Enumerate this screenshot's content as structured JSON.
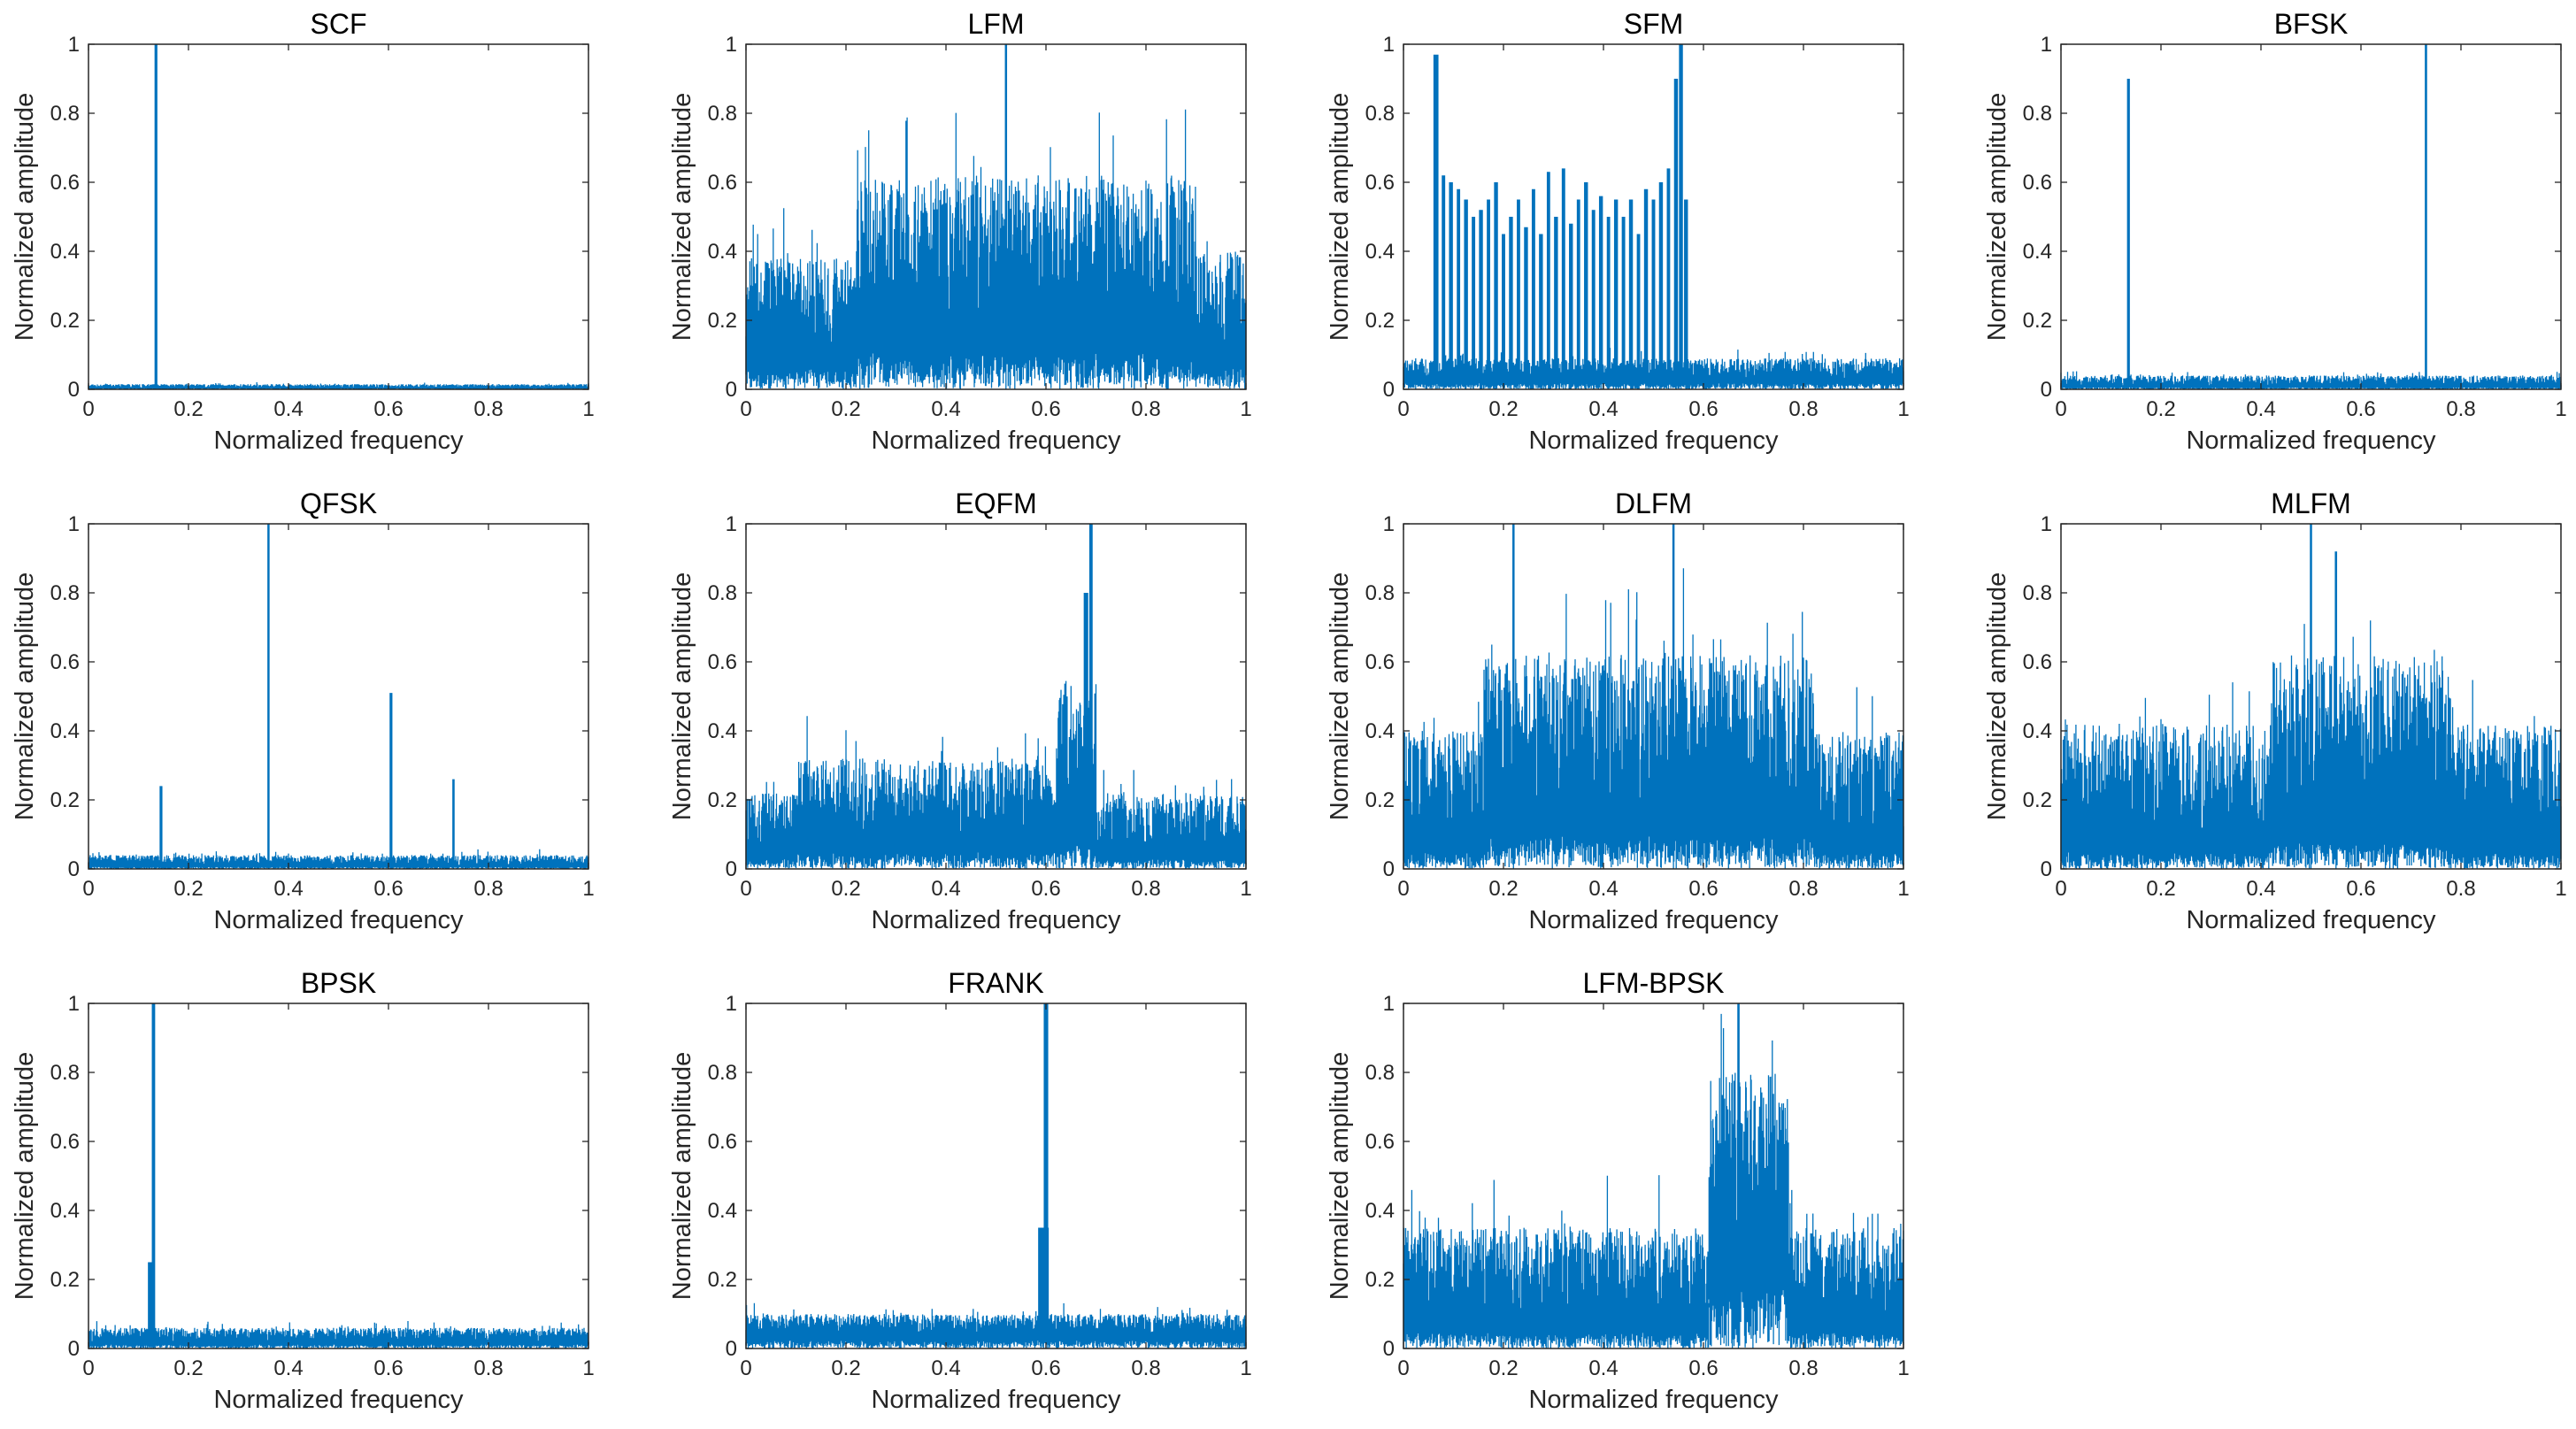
{
  "colors": {
    "series": "#0072BD",
    "axis": "#262626",
    "background": "#ffffff"
  },
  "chart_data": [
    {
      "type": "line",
      "title": "SCF",
      "xlabel": "Normalized frequency",
      "ylabel": "Normalized amplitude",
      "xlim": [
        0,
        1
      ],
      "ylim": [
        0,
        1
      ],
      "xticks": [
        "0",
        "0.2",
        "0.4",
        "0.6",
        "0.8",
        "1"
      ],
      "yticks": [
        "0",
        "0.2",
        "0.4",
        "0.6",
        "0.8",
        "1"
      ],
      "spectrum": {
        "bands": [
          [
            0,
            1,
            0.005,
            0.015
          ]
        ],
        "peaks": [
          {
            "x": 0.135,
            "y": 1.0,
            "width": 0.002
          }
        ]
      }
    },
    {
      "type": "line",
      "title": "LFM",
      "xlabel": "Normalized frequency",
      "ylabel": "Normalized amplitude",
      "xlim": [
        0,
        1
      ],
      "ylim": [
        0,
        1
      ],
      "xticks": [
        "0",
        "0.2",
        "0.4",
        "0.6",
        "0.8",
        "1"
      ],
      "yticks": [
        "0",
        "0.2",
        "0.4",
        "0.6",
        "0.8",
        "1"
      ],
      "spectrum": {
        "bands": [
          [
            0,
            0.22,
            0.1,
            0.38
          ],
          [
            0.22,
            0.9,
            0.18,
            0.62
          ],
          [
            0.9,
            1,
            0.1,
            0.4
          ]
        ],
        "peaks": [
          {
            "x": 0.52,
            "y": 1.0,
            "width": 0.002
          }
        ]
      }
    },
    {
      "type": "line",
      "title": "SFM",
      "xlabel": "Normalized frequency",
      "ylabel": "Normalized amplitude",
      "xlim": [
        0,
        1
      ],
      "ylim": [
        0,
        1
      ],
      "xticks": [
        "0",
        "0.2",
        "0.4",
        "0.6",
        "0.8",
        "1"
      ],
      "yticks": [
        "0",
        "0.2",
        "0.4",
        "0.6",
        "0.8",
        "1"
      ],
      "spectrum": {
        "bands": [
          [
            0,
            1,
            0.03,
            0.09
          ]
        ],
        "peaks": [
          {
            "x": 0.065,
            "y": 0.97,
            "width": 0.004
          },
          {
            "x": 0.08,
            "y": 0.62,
            "width": 0.003
          },
          {
            "x": 0.095,
            "y": 0.6,
            "width": 0.003
          },
          {
            "x": 0.11,
            "y": 0.58,
            "width": 0.003
          },
          {
            "x": 0.125,
            "y": 0.55,
            "width": 0.003
          },
          {
            "x": 0.14,
            "y": 0.5,
            "width": 0.003
          },
          {
            "x": 0.155,
            "y": 0.52,
            "width": 0.003
          },
          {
            "x": 0.17,
            "y": 0.55,
            "width": 0.003
          },
          {
            "x": 0.185,
            "y": 0.6,
            "width": 0.003
          },
          {
            "x": 0.2,
            "y": 0.45,
            "width": 0.003
          },
          {
            "x": 0.215,
            "y": 0.5,
            "width": 0.003
          },
          {
            "x": 0.23,
            "y": 0.55,
            "width": 0.003
          },
          {
            "x": 0.245,
            "y": 0.47,
            "width": 0.003
          },
          {
            "x": 0.26,
            "y": 0.58,
            "width": 0.003
          },
          {
            "x": 0.275,
            "y": 0.45,
            "width": 0.003
          },
          {
            "x": 0.29,
            "y": 0.63,
            "width": 0.003
          },
          {
            "x": 0.305,
            "y": 0.5,
            "width": 0.003
          },
          {
            "x": 0.32,
            "y": 0.64,
            "width": 0.003
          },
          {
            "x": 0.335,
            "y": 0.48,
            "width": 0.003
          },
          {
            "x": 0.35,
            "y": 0.55,
            "width": 0.003
          },
          {
            "x": 0.365,
            "y": 0.6,
            "width": 0.003
          },
          {
            "x": 0.38,
            "y": 0.52,
            "width": 0.003
          },
          {
            "x": 0.395,
            "y": 0.56,
            "width": 0.003
          },
          {
            "x": 0.41,
            "y": 0.5,
            "width": 0.003
          },
          {
            "x": 0.425,
            "y": 0.55,
            "width": 0.003
          },
          {
            "x": 0.44,
            "y": 0.5,
            "width": 0.003
          },
          {
            "x": 0.455,
            "y": 0.55,
            "width": 0.003
          },
          {
            "x": 0.47,
            "y": 0.45,
            "width": 0.003
          },
          {
            "x": 0.485,
            "y": 0.58,
            "width": 0.003
          },
          {
            "x": 0.5,
            "y": 0.55,
            "width": 0.003
          },
          {
            "x": 0.515,
            "y": 0.6,
            "width": 0.003
          },
          {
            "x": 0.53,
            "y": 0.64,
            "width": 0.003
          },
          {
            "x": 0.545,
            "y": 0.9,
            "width": 0.003
          },
          {
            "x": 0.555,
            "y": 1.0,
            "width": 0.003
          },
          {
            "x": 0.565,
            "y": 0.55,
            "width": 0.003
          }
        ]
      }
    },
    {
      "type": "line",
      "title": "BFSK",
      "xlabel": "Normalized frequency",
      "ylabel": "Normalized amplitude",
      "xlim": [
        0,
        1
      ],
      "ylim": [
        0,
        1
      ],
      "xticks": [
        "0",
        "0.2",
        "0.4",
        "0.6",
        "0.8",
        "1"
      ],
      "yticks": [
        "0",
        "0.2",
        "0.4",
        "0.6",
        "0.8",
        "1"
      ],
      "spectrum": {
        "bands": [
          [
            0,
            1,
            0.01,
            0.04
          ]
        ],
        "peaks": [
          {
            "x": 0.135,
            "y": 0.9,
            "width": 0.002
          },
          {
            "x": 0.73,
            "y": 1.0,
            "width": 0.002
          }
        ]
      }
    },
    {
      "type": "line",
      "title": "QFSK",
      "xlabel": "Normalized frequency",
      "ylabel": "Normalized amplitude",
      "xlim": [
        0,
        1
      ],
      "ylim": [
        0,
        1
      ],
      "xticks": [
        "0",
        "0.2",
        "0.4",
        "0.6",
        "0.8",
        "1"
      ],
      "yticks": [
        "0",
        "0.2",
        "0.4",
        "0.6",
        "0.8",
        "1"
      ],
      "spectrum": {
        "bands": [
          [
            0,
            1,
            0.01,
            0.04
          ]
        ],
        "peaks": [
          {
            "x": 0.145,
            "y": 0.24,
            "width": 0.002
          },
          {
            "x": 0.36,
            "y": 1.0,
            "width": 0.002
          },
          {
            "x": 0.605,
            "y": 0.51,
            "width": 0.002
          },
          {
            "x": 0.73,
            "y": 0.26,
            "width": 0.002
          }
        ]
      }
    },
    {
      "type": "line",
      "title": "EQFM",
      "xlabel": "Normalized frequency",
      "ylabel": "Normalized amplitude",
      "xlim": [
        0,
        1
      ],
      "ylim": [
        0,
        1
      ],
      "xticks": [
        "0",
        "0.2",
        "0.4",
        "0.6",
        "0.8",
        "1"
      ],
      "yticks": [
        "0",
        "0.2",
        "0.4",
        "0.6",
        "0.8",
        "1"
      ],
      "spectrum": {
        "bands": [
          [
            0,
            0.1,
            0.05,
            0.22
          ],
          [
            0.1,
            0.62,
            0.08,
            0.32
          ],
          [
            0.62,
            0.7,
            0.15,
            0.55
          ],
          [
            0.7,
            1,
            0.05,
            0.22
          ]
        ],
        "peaks": [
          {
            "x": 0.69,
            "y": 1.0,
            "width": 0.003
          },
          {
            "x": 0.68,
            "y": 0.8,
            "width": 0.004
          }
        ]
      }
    },
    {
      "type": "line",
      "title": "DLFM",
      "xlabel": "Normalized frequency",
      "ylabel": "Normalized amplitude",
      "xlim": [
        0,
        1
      ],
      "ylim": [
        0,
        1
      ],
      "xticks": [
        "0",
        "0.2",
        "0.4",
        "0.6",
        "0.8",
        "1"
      ],
      "yticks": [
        "0",
        "0.2",
        "0.4",
        "0.6",
        "0.8",
        "1"
      ],
      "spectrum": {
        "bands": [
          [
            0,
            0.16,
            0.08,
            0.4
          ],
          [
            0.16,
            0.82,
            0.16,
            0.62
          ],
          [
            0.82,
            1,
            0.08,
            0.4
          ]
        ],
        "peaks": [
          {
            "x": 0.22,
            "y": 1.0,
            "width": 0.002
          },
          {
            "x": 0.54,
            "y": 1.0,
            "width": 0.002
          }
        ]
      }
    },
    {
      "type": "line",
      "title": "MLFM",
      "xlabel": "Normalized frequency",
      "ylabel": "Normalized amplitude",
      "xlim": [
        0,
        1
      ],
      "ylim": [
        0,
        1
      ],
      "xticks": [
        "0",
        "0.2",
        "0.4",
        "0.6",
        "0.8",
        "1"
      ],
      "yticks": [
        "0",
        "0.2",
        "0.4",
        "0.6",
        "0.8",
        "1"
      ],
      "spectrum": {
        "bands": [
          [
            0,
            0.42,
            0.08,
            0.42
          ],
          [
            0.42,
            0.78,
            0.14,
            0.62
          ],
          [
            0.78,
            1,
            0.08,
            0.42
          ]
        ],
        "peaks": [
          {
            "x": 0.5,
            "y": 1.0,
            "width": 0.002
          },
          {
            "x": 0.55,
            "y": 0.92,
            "width": 0.002
          }
        ]
      }
    },
    {
      "type": "line",
      "title": "BPSK",
      "xlabel": "Normalized frequency",
      "ylabel": "Normalized amplitude",
      "xlim": [
        0,
        1
      ],
      "ylim": [
        0,
        1
      ],
      "xticks": [
        "0",
        "0.2",
        "0.4",
        "0.6",
        "0.8",
        "1"
      ],
      "yticks": [
        "0",
        "0.2",
        "0.4",
        "0.6",
        "0.8",
        "1"
      ],
      "spectrum": {
        "bands": [
          [
            0,
            1,
            0.02,
            0.06
          ]
        ],
        "peaks": [
          {
            "x": 0.13,
            "y": 1.0,
            "width": 0.003
          },
          {
            "x": 0.125,
            "y": 0.25,
            "width": 0.006
          }
        ]
      }
    },
    {
      "type": "line",
      "title": "FRANK",
      "xlabel": "Normalized frequency",
      "ylabel": "Normalized amplitude",
      "xlim": [
        0,
        1
      ],
      "ylim": [
        0,
        1
      ],
      "xticks": [
        "0",
        "0.2",
        "0.4",
        "0.6",
        "0.8",
        "1"
      ],
      "yticks": [
        "0",
        "0.2",
        "0.4",
        "0.6",
        "0.8",
        "1"
      ],
      "spectrum": {
        "bands": [
          [
            0,
            1,
            0.04,
            0.1
          ]
        ],
        "peaks": [
          {
            "x": 0.6,
            "y": 1.0,
            "width": 0.004
          },
          {
            "x": 0.595,
            "y": 0.35,
            "width": 0.01
          }
        ]
      }
    },
    {
      "type": "line",
      "title": "LFM-BPSK",
      "xlabel": "Normalized frequency",
      "ylabel": "Normalized amplitude",
      "xlim": [
        0,
        1
      ],
      "ylim": [
        0,
        1
      ],
      "xticks": [
        "0",
        "0.2",
        "0.4",
        "0.6",
        "0.8",
        "1"
      ],
      "yticks": [
        "0",
        "0.2",
        "0.4",
        "0.6",
        "0.8",
        "1"
      ],
      "spectrum": {
        "bands": [
          [
            0,
            0.61,
            0.08,
            0.35
          ],
          [
            0.61,
            0.77,
            0.3,
            0.8
          ],
          [
            0.77,
            1,
            0.08,
            0.35
          ]
        ],
        "peaks": [
          {
            "x": 0.67,
            "y": 1.0,
            "width": 0.002
          }
        ]
      }
    }
  ]
}
